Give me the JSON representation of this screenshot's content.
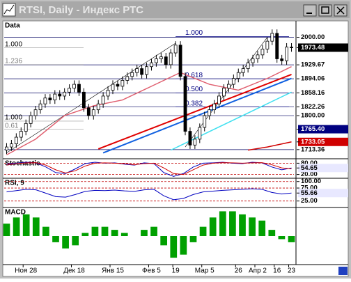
{
  "window_title": "RTSI, Daily - Индекс РТС",
  "chart_data": [
    {
      "type": "candlestick",
      "panel": "Data",
      "categories": [
        null,
        null,
        null,
        null,
        "Ноя 28",
        null,
        null,
        null,
        null,
        null,
        null,
        null,
        null,
        null,
        "Дек 18",
        null,
        null,
        null,
        null,
        null,
        null,
        null,
        "Янв 15",
        null,
        null,
        null,
        null,
        null,
        null,
        null,
        "Фев 5",
        null,
        null,
        null,
        null,
        "19",
        null,
        null,
        null,
        null,
        null,
        "Мар 5",
        null,
        null,
        null,
        null,
        null,
        null,
        "26",
        null,
        null,
        null,
        "Апр 2",
        null,
        null,
        null,
        "16",
        null,
        null,
        "23"
      ],
      "open": [
        1712,
        1720,
        1728,
        1745,
        1760,
        1780,
        1800,
        1815,
        1830,
        1845,
        1840,
        1855,
        1850,
        1860,
        1870,
        1880,
        1860,
        1820,
        1800,
        1815,
        1830,
        1850,
        1865,
        1880,
        1875,
        1890,
        1900,
        1910,
        1920,
        1905,
        1925,
        1935,
        1945,
        1950,
        1930,
        1960,
        1980,
        1900,
        1760,
        1725,
        1740,
        1770,
        1800,
        1815,
        1830,
        1850,
        1870,
        1880,
        1895,
        1910,
        1920,
        1935,
        1945,
        1955,
        1970,
        1990,
        2010,
        1945,
        1940,
        1975
      ],
      "high": [
        1730,
        1738,
        1755,
        1770,
        1790,
        1810,
        1825,
        1840,
        1855,
        1855,
        1865,
        1865,
        1870,
        1880,
        1890,
        1890,
        1870,
        1830,
        1825,
        1840,
        1860,
        1875,
        1890,
        1890,
        1900,
        1910,
        1920,
        1930,
        1930,
        1935,
        1945,
        1955,
        1960,
        1960,
        1970,
        1990,
        1990,
        1910,
        1770,
        1750,
        1780,
        1810,
        1825,
        1840,
        1860,
        1880,
        1890,
        1905,
        1920,
        1930,
        1945,
        1955,
        1965,
        1980,
        2000,
        2020,
        2020,
        1955,
        1985,
        1985
      ],
      "low": [
        1702,
        1710,
        1718,
        1735,
        1750,
        1770,
        1790,
        1805,
        1820,
        1830,
        1830,
        1840,
        1840,
        1850,
        1860,
        1850,
        1810,
        1790,
        1790,
        1805,
        1820,
        1840,
        1855,
        1865,
        1865,
        1880,
        1890,
        1900,
        1895,
        1895,
        1915,
        1925,
        1935,
        1920,
        1920,
        1950,
        1890,
        1750,
        1715,
        1715,
        1730,
        1760,
        1790,
        1805,
        1820,
        1840,
        1860,
        1870,
        1885,
        1900,
        1910,
        1925,
        1935,
        1945,
        1960,
        1980,
        1935,
        1930,
        1930,
        1963
      ],
      "close": [
        1720,
        1728,
        1745,
        1760,
        1780,
        1800,
        1815,
        1830,
        1845,
        1840,
        1855,
        1850,
        1860,
        1870,
        1880,
        1860,
        1820,
        1800,
        1815,
        1830,
        1850,
        1865,
        1880,
        1875,
        1890,
        1900,
        1910,
        1920,
        1905,
        1925,
        1935,
        1945,
        1950,
        1930,
        1960,
        1980,
        1900,
        1760,
        1725,
        1740,
        1770,
        1800,
        1815,
        1830,
        1850,
        1870,
        1880,
        1895,
        1910,
        1920,
        1935,
        1945,
        1955,
        1970,
        1990,
        2010,
        1945,
        1940,
        1975,
        1973.48
      ],
      "ylim": [
        1690,
        2040
      ],
      "yticks": [
        {
          "value": 2000,
          "label": "2000.00"
        },
        {
          "value": 1929.67,
          "label": "1929.67"
        },
        {
          "value": 1894.06,
          "label": "1894.06"
        },
        {
          "value": 1858.16,
          "label": "1858.16"
        },
        {
          "value": 1822.26,
          "label": "1822.26"
        },
        {
          "value": 1800,
          "label": "1800.00"
        },
        {
          "value": 1713.36,
          "label": "1713.36"
        }
      ],
      "price_labels": [
        {
          "value": 1973.48,
          "label": "1973.48",
          "color": "#000000"
        },
        {
          "value": 1765.4,
          "label": "1765.40",
          "color": "#000080"
        },
        {
          "value": 1733.05,
          "label": "1733.05",
          "color": "#d00000"
        }
      ],
      "fib_left": [
        {
          "value": 1973,
          "label": "1.000"
        },
        {
          "value": 1930,
          "label": "1.236"
        },
        {
          "value": 1786,
          "label": "1.000"
        },
        {
          "value": 1765,
          "label": "0.61"
        }
      ],
      "fib_mid": [
        {
          "value": 2002,
          "label": "1.000"
        },
        {
          "value": 1894,
          "label": "0.618"
        },
        {
          "value": 1858,
          "label": "0.500"
        },
        {
          "value": 1822,
          "label": "0.382"
        }
      ],
      "moving_averages": [
        {
          "color": "#e06070",
          "x": [
            0,
            6,
            12,
            18,
            24,
            30,
            36,
            42,
            48,
            54,
            59
          ],
          "values": [
            1700,
            1740,
            1800,
            1825,
            1840,
            1875,
            1910,
            1880,
            1865,
            1895,
            1925
          ]
        },
        {
          "color": "#d00000",
          "x": [
            50,
            54,
            59
          ],
          "values": [
            1712,
            1720,
            1733.05
          ]
        }
      ],
      "trendlines": [
        {
          "color": "#e00000",
          "width": 2,
          "x": [
            19,
            59
          ],
          "values": [
            1715,
            1905
          ]
        },
        {
          "color": "#1060e0",
          "width": 2,
          "x": [
            20,
            59
          ],
          "values": [
            1705,
            1895
          ]
        },
        {
          "color": "#40e0f0",
          "width": 1.5,
          "x": [
            34,
            59
          ],
          "values": [
            1712,
            1860
          ]
        },
        {
          "color": "#000000",
          "width": 0.6,
          "x": [
            0,
            35
          ],
          "values": [
            1705,
            1985
          ]
        },
        {
          "color": "#000000",
          "width": 0.6,
          "x": [
            37,
            54
          ],
          "values": [
            1720,
            2000
          ]
        }
      ]
    },
    {
      "type": "line",
      "panel": "Stochastic",
      "ylim": [
        0,
        100
      ],
      "yticks": [
        {
          "value": 80,
          "label": "80.00"
        },
        {
          "value": 20,
          "label": "20.00"
        }
      ],
      "current": {
        "value": 54.65,
        "label": "54.65"
      },
      "series": [
        {
          "color": "#0000c0",
          "values": [
            75,
            80,
            85,
            82,
            60,
            30,
            25,
            50,
            78,
            85,
            80,
            82,
            75,
            70,
            82,
            78,
            30,
            10,
            25,
            60,
            80,
            82,
            85,
            80,
            78,
            85,
            82,
            60,
            45,
            54.65
          ]
        },
        {
          "color": "#d00000",
          "values": [
            70,
            78,
            82,
            83,
            70,
            45,
            28,
            40,
            65,
            80,
            82,
            80,
            78,
            72,
            78,
            80,
            55,
            25,
            20,
            45,
            70,
            80,
            83,
            82,
            80,
            82,
            83,
            72,
            55,
            50
          ]
        }
      ]
    },
    {
      "type": "line",
      "panel": "RSI, 9",
      "ylim": [
        0,
        110
      ],
      "yticks": [
        {
          "value": 100,
          "label": "100.00"
        },
        {
          "value": 75,
          "label": "75.00"
        },
        {
          "value": 25,
          "label": "25.00"
        }
      ],
      "current": {
        "value": 55.66,
        "label": "55.66"
      },
      "series": [
        {
          "color": "#0000c0",
          "values": [
            60,
            65,
            70,
            68,
            55,
            42,
            40,
            50,
            62,
            66,
            65,
            67,
            64,
            62,
            68,
            70,
            45,
            30,
            35,
            50,
            60,
            63,
            66,
            68,
            70,
            72,
            70,
            58,
            52,
            55.66
          ]
        }
      ]
    },
    {
      "type": "histogram",
      "panel": "MACD",
      "ylim": [
        -9,
        9
      ],
      "color": "#00a000",
      "values": [
        4,
        6,
        7,
        6,
        3,
        -2,
        -4,
        -3,
        1,
        3,
        3,
        2,
        1,
        0,
        2,
        3,
        -3,
        -7,
        -6,
        -2,
        3,
        6,
        8,
        8,
        7,
        6,
        5,
        2,
        -1,
        -2
      ]
    }
  ]
}
